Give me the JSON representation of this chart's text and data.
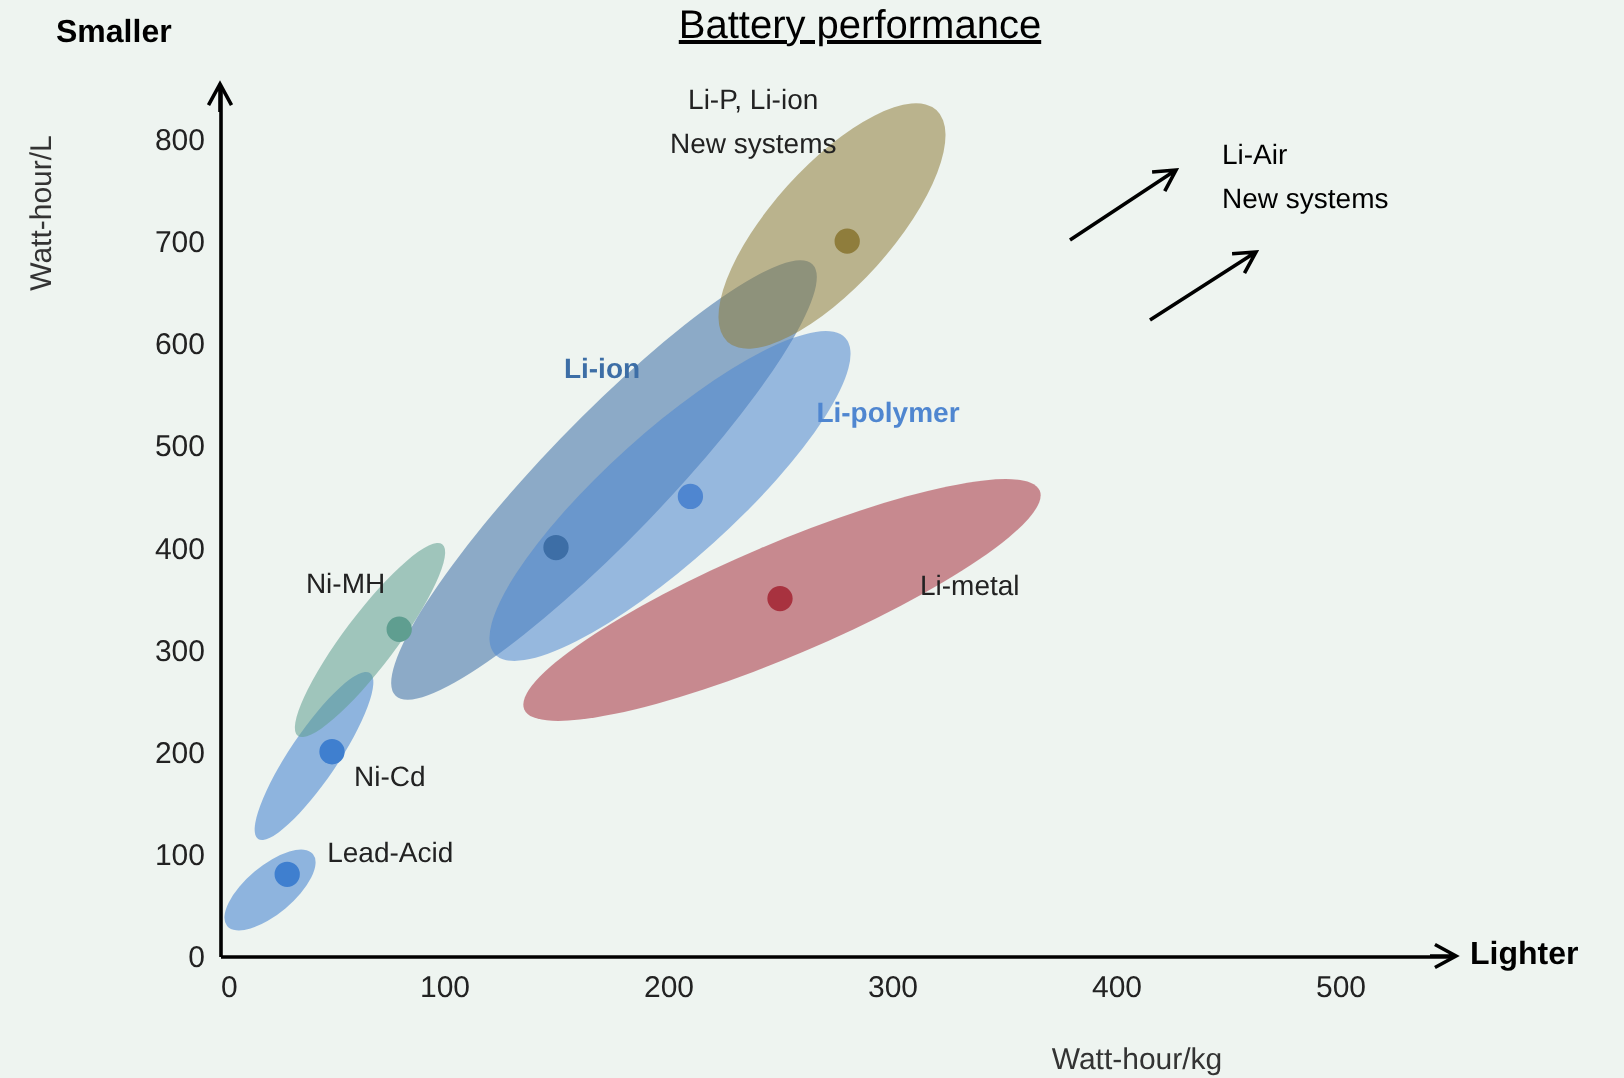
{
  "chart_data": {
    "type": "scatter",
    "title": "Battery performance",
    "xlabel": "Watt-hour/kg",
    "ylabel": "Watt-hour/L",
    "xlim": [
      0,
      550
    ],
    "ylim": [
      0,
      850
    ],
    "xticks": [
      0,
      100,
      200,
      300,
      400,
      500
    ],
    "yticks": [
      0,
      100,
      200,
      300,
      400,
      500,
      600,
      700,
      800
    ],
    "grid": false,
    "marker": "circle",
    "series": [
      {
        "name": "Lead-Acid",
        "color": "#3f7fcf",
        "x": [
          30
        ],
        "values": [
          80
        ]
      },
      {
        "name": "Ni-Cd",
        "color": "#3f7fcf",
        "x": [
          50
        ],
        "values": [
          200
        ]
      },
      {
        "name": "Ni-MH",
        "color": "#5f9e90",
        "x": [
          80
        ],
        "values": [
          320
        ]
      },
      {
        "name": "Li-ion",
        "color": "#3d6ea6",
        "x": [
          150
        ],
        "values": [
          400
        ]
      },
      {
        "name": "Li-polymer",
        "color": "#4f86d0",
        "x": [
          210
        ],
        "values": [
          450
        ]
      },
      {
        "name": "Li-metal",
        "color": "#a8323f",
        "x": [
          250
        ],
        "values": [
          350
        ]
      },
      {
        "name": "Li-P, Li-ion\nNew systems",
        "color": "#8f7d3c",
        "x": [
          280
        ],
        "values": [
          700
        ]
      }
    ],
    "annotations": [
      "Smaller",
      "Lighter",
      "Li-Air\nNew systems"
    ]
  }
}
